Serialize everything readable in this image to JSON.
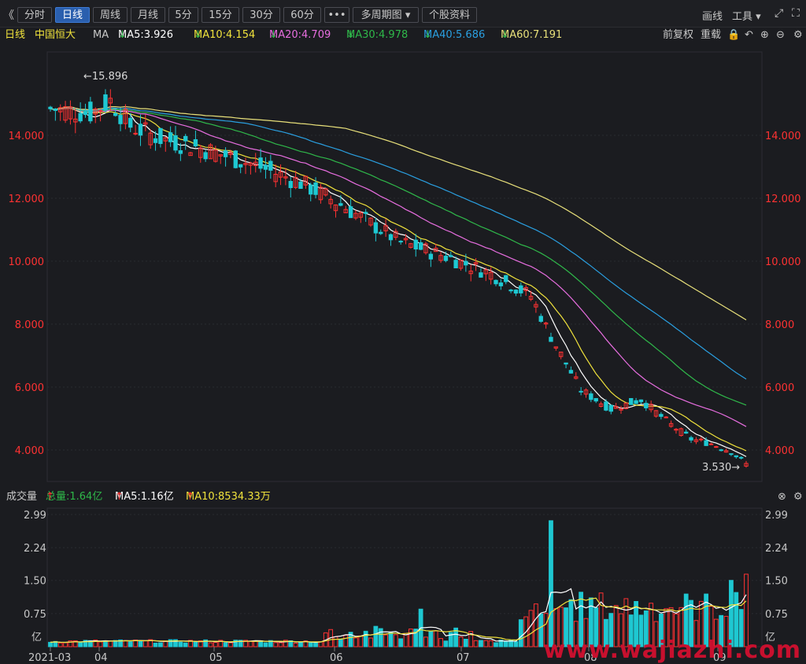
{
  "toolbar": {
    "collapse_glyph": "《",
    "periods": [
      {
        "label": "分时",
        "active": false
      },
      {
        "label": "日线",
        "active": true
      },
      {
        "label": "周线",
        "active": false
      },
      {
        "label": "月线",
        "active": false
      },
      {
        "label": "5分",
        "active": false
      },
      {
        "label": "15分",
        "active": false
      },
      {
        "label": "30分",
        "active": false
      },
      {
        "label": "60分",
        "active": false
      }
    ],
    "more_label": "•••",
    "multi_period_label": "多周期图",
    "stock_info_label": "个股资料",
    "draw_label": "画线",
    "tools_label": "工具"
  },
  "ma_bar": {
    "period": "日线",
    "stock_name": "中国恒大",
    "ma_label": "MA",
    "ma5": "MA5:3.926",
    "ma10": "MA10:4.154",
    "ma20": "MA20:4.709",
    "ma30": "MA30:4.978",
    "ma40": "MA40:5.686",
    "ma60": "MA60:7.191",
    "adjust_label": "前复权",
    "reload_label": "重载"
  },
  "volume_bar": {
    "title": "成交量",
    "total": "总量:1.64亿",
    "ma5": "MA5:1.16亿",
    "ma10": "MA10:8534.33万"
  },
  "price_axis": {
    "ticks": [
      "14.000",
      "12.000",
      "10.000",
      "8.000",
      "6.000",
      "4.000"
    ]
  },
  "volume_axis": {
    "ticks": [
      "2.99",
      "2.24",
      "1.50",
      "0.75"
    ],
    "unit": "亿"
  },
  "markers": {
    "high": "15.896",
    "low": "3.530"
  },
  "x_axis": {
    "labels": [
      "2021-03",
      "04",
      "05",
      "06",
      "07",
      "08",
      "09"
    ]
  },
  "colors": {
    "up": "#ff3232",
    "down": "#1ec8d2",
    "ma5": "#ffffff",
    "ma10": "#f0e23c",
    "ma20": "#e86ee0",
    "ma30": "#2fb84a",
    "ma40": "#2a9fe0",
    "ma60": "#e8e07a"
  },
  "watermark": "www.wajiazhi.com"
}
